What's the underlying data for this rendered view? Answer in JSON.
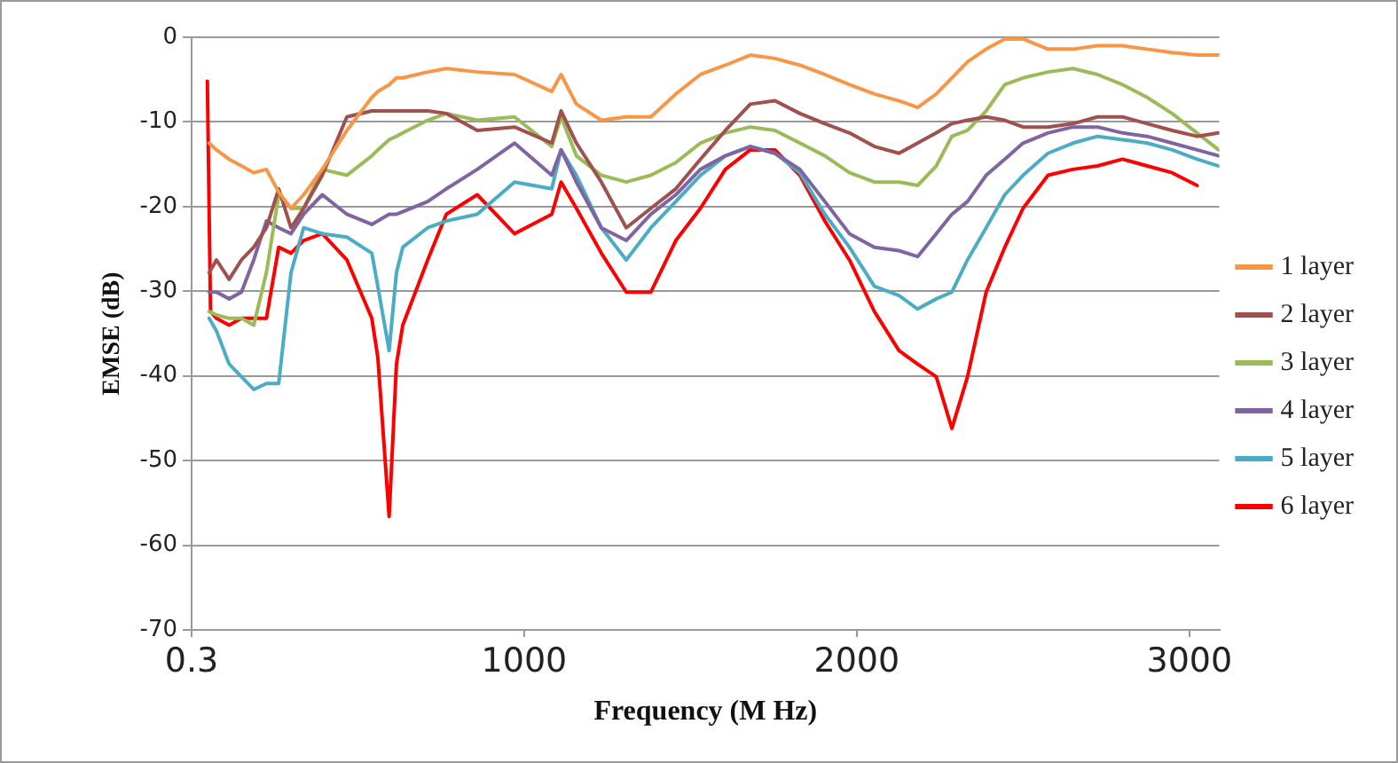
{
  "chart_data": {
    "type": "line",
    "xlabel": "Frequency (M Hz)",
    "ylabel": "EMSE (dB)",
    "x": [
      53,
      75,
      113,
      150,
      187,
      225,
      262,
      299,
      337,
      393,
      467,
      542,
      560,
      594,
      616,
      635,
      710,
      766,
      859,
      971,
      1083,
      1111,
      1157,
      1232,
      1307,
      1381,
      1456,
      1530,
      1605,
      1680,
      1754,
      1829,
      1904,
      1978,
      2053,
      2127,
      2183,
      2239,
      2286,
      2333,
      2389,
      2445,
      2500,
      2575,
      2650,
      2724,
      2799,
      2873,
      2948,
      3023,
      3088
    ],
    "xlim": [
      0.3,
      3090
    ],
    "xticks": [
      0.3,
      1000,
      2000,
      3000
    ],
    "ylim": [
      -70,
      0
    ],
    "yticks": [
      -70,
      -60,
      -50,
      -40,
      -30,
      -20,
      -10,
      0
    ],
    "grid": "y",
    "legend": "right",
    "marker": "none",
    "line_style": "solid",
    "series": [
      {
        "name": "1 layer",
        "color": "#f79646",
        "values": [
          -12.5,
          -13.3,
          -14.4,
          -15.2,
          -16,
          -15.6,
          -18.3,
          -20.2,
          -18.6,
          -15.6,
          -11,
          -7.1,
          -6.4,
          -5.6,
          -4.8,
          -4.8,
          -4.1,
          -3.7,
          -4.1,
          -4.4,
          -6.4,
          -4.4,
          -7.9,
          -9.8,
          -9.4,
          -9.4,
          -6.7,
          -4.4,
          -3.3,
          -2.1,
          -2.5,
          -3.3,
          -4.4,
          -5.6,
          -6.7,
          -7.5,
          -8.3,
          -6.7,
          -4.8,
          -2.9,
          -1.4,
          -0.2,
          -0.2,
          -1.4,
          -1.4,
          -1,
          -1,
          -1.4,
          -1.8,
          -2.1,
          -2.1
        ]
      },
      {
        "name": "2 layer",
        "color": "#a0504d",
        "values": [
          -27.8,
          -26.3,
          -28.6,
          -26.3,
          -24.8,
          -22.5,
          -17.9,
          -22.5,
          -20.2,
          -16.3,
          -9.4,
          -8.7,
          -8.7,
          -8.7,
          -8.7,
          -8.7,
          -8.7,
          -9,
          -11,
          -10.6,
          -12.5,
          -8.7,
          -12.5,
          -17.1,
          -22.5,
          -20.2,
          -17.9,
          -14.4,
          -11,
          -7.9,
          -7.5,
          -9,
          -10.2,
          -11.3,
          -12.9,
          -13.7,
          -12.5,
          -11.3,
          -10.2,
          -9.8,
          -9.4,
          -9.8,
          -10.6,
          -10.6,
          -10.2,
          -9.4,
          -9.4,
          -10.2,
          -11,
          -11.7,
          -11.3
        ]
      },
      {
        "name": "3 layer",
        "color": "#9bbb59",
        "values": [
          -32.4,
          -32.8,
          -33.2,
          -33.2,
          -34,
          -27.8,
          -18.6,
          -20.2,
          -20.2,
          -15.6,
          -16.3,
          -14,
          -13.3,
          -12.1,
          -11.7,
          -11.3,
          -9.8,
          -9,
          -9.8,
          -9.4,
          -12.9,
          -9.4,
          -14,
          -16.3,
          -17.1,
          -16.3,
          -14.8,
          -12.5,
          -11.3,
          -10.6,
          -11,
          -12.5,
          -14,
          -16,
          -17.1,
          -17.1,
          -17.5,
          -15.2,
          -11.7,
          -11,
          -8.7,
          -5.6,
          -4.8,
          -4.1,
          -3.7,
          -4.4,
          -5.6,
          -7.1,
          -9,
          -11.3,
          -13.3
        ]
      },
      {
        "name": "4 layer",
        "color": "#8064a2",
        "values": [
          -30.1,
          -30.1,
          -30.9,
          -30.1,
          -26.3,
          -21.7,
          -22.5,
          -23.2,
          -20.9,
          -18.6,
          -20.9,
          -22.1,
          -21.7,
          -20.9,
          -20.9,
          -20.6,
          -19.4,
          -17.9,
          -15.6,
          -12.5,
          -16.3,
          -13.3,
          -17.1,
          -22.5,
          -24,
          -20.9,
          -18.6,
          -15.6,
          -14,
          -12.9,
          -13.7,
          -15.6,
          -19.4,
          -23.2,
          -24.8,
          -25.2,
          -25.9,
          -23.2,
          -20.9,
          -19.4,
          -16.3,
          -14.4,
          -12.5,
          -11.3,
          -10.6,
          -10.6,
          -11.3,
          -11.7,
          -12.5,
          -13.3,
          -14
        ]
      },
      {
        "name": "5 layer",
        "color": "#4bacc6",
        "values": [
          -33.2,
          -34.7,
          -38.6,
          -40.1,
          -41.6,
          -40.9,
          -40.9,
          -27.8,
          -22.5,
          -23.2,
          -23.6,
          -25.5,
          -29.4,
          -37,
          -27.8,
          -24.8,
          -22.5,
          -21.7,
          -20.9,
          -17.1,
          -17.9,
          -13.3,
          -16.3,
          -22.5,
          -26.3,
          -22.5,
          -19.4,
          -16.3,
          -14,
          -12.9,
          -13.7,
          -16,
          -20.9,
          -24.8,
          -29.4,
          -30.5,
          -32.1,
          -30.9,
          -30.1,
          -26.3,
          -22.5,
          -18.6,
          -16.3,
          -13.7,
          -12.5,
          -11.7,
          -12.1,
          -12.5,
          -13.3,
          -14.4,
          -15.2
        ]
      },
      {
        "name": "6 layer",
        "color": "#ff0000",
        "x": [
          47.5,
          57,
          75,
          113,
          150,
          187,
          225,
          262,
          299,
          337,
          393,
          467,
          542,
          560,
          594,
          616,
          635,
          710,
          766,
          859,
          971,
          1083,
          1111,
          1157,
          1232,
          1307,
          1381,
          1456,
          1530,
          1605,
          1680,
          1754,
          1829,
          1904,
          1978,
          2053,
          2127,
          2183,
          2239,
          2286,
          2333,
          2389,
          2445,
          2500,
          2575,
          2650,
          2724,
          2799,
          2873,
          2948,
          3023
        ],
        "values": [
          -5.2,
          -32.4,
          -33.2,
          -34,
          -33.2,
          -33.2,
          -33.2,
          -24.8,
          -25.5,
          -24,
          -23.2,
          -26.3,
          -33.2,
          -37.8,
          -56.6,
          -38.6,
          -34,
          -26.3,
          -20.9,
          -18.6,
          -23.2,
          -20.9,
          -17.1,
          -20.2,
          -25.5,
          -30.1,
          -30.1,
          -24,
          -20.2,
          -15.6,
          -13.3,
          -13.3,
          -16.3,
          -21.7,
          -26.3,
          -32.4,
          -37,
          -38.6,
          -40.1,
          -46.2,
          -40.1,
          -30.1,
          -24.8,
          -20.2,
          -16.3,
          -15.6,
          -15.2,
          -14.4,
          -15.2,
          -16,
          -17.5
        ]
      }
    ]
  }
}
